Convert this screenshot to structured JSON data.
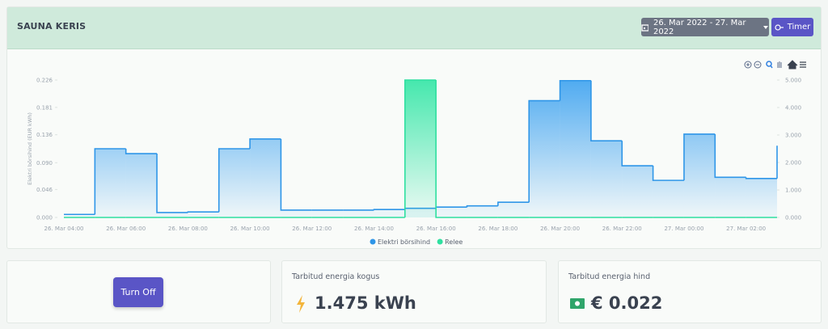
{
  "header": {
    "title": "SAUNA KERIS",
    "date_range": "26. Mar 2022 - 27. Mar 2022",
    "timer": "Timer"
  },
  "chart_data": {
    "type": "step-area",
    "ylabel": "Elektri börsihind (EUR kWh)",
    "categories": [
      "26. Mar 04:00",
      null,
      "26. Mar 06:00",
      null,
      "26. Mar 08:00",
      null,
      "26. Mar 10:00",
      null,
      "26. Mar 12:00",
      null,
      "26. Mar 14:00",
      null,
      "26. Mar 16:00",
      null,
      "26. Mar 18:00",
      null,
      "26. Mar 20:00",
      null,
      "26. Mar 22:00",
      null,
      "27. Mar 00:00",
      null,
      "27. Mar 02:00",
      null
    ],
    "series": [
      {
        "name": "Elektri börsihind",
        "color": "#2f96e8",
        "values": [
          0.005,
          0.113,
          0.105,
          0.008,
          0.009,
          0.113,
          0.129,
          0.012,
          0.012,
          0.012,
          0.013,
          0.015,
          0.017,
          0.019,
          0.025,
          0.192,
          0.225,
          0.126,
          0.085,
          0.061,
          0.137,
          0.066,
          0.064,
          0.118
        ]
      },
      {
        "name": "Relee",
        "color": "#2fe0a0",
        "axis": "y2",
        "values": [
          0,
          0,
          0,
          0,
          0,
          0,
          0,
          0,
          0,
          0,
          0,
          5,
          0,
          0,
          0,
          0,
          0,
          0,
          0,
          0,
          0,
          0,
          0,
          0
        ]
      }
    ],
    "ylim": [
      0,
      0.226
    ],
    "yticks": [
      {
        "value": 0,
        "label": "0.000"
      },
      {
        "value": 0.046,
        "label": "0.046"
      },
      {
        "value": 0.09,
        "label": "0.090"
      },
      {
        "value": 0.136,
        "label": "0.136"
      },
      {
        "value": 0.181,
        "label": "0.181"
      },
      {
        "value": 0.226,
        "label": "0.226"
      }
    ],
    "y2lim": [
      0,
      5
    ],
    "y2ticks": [
      {
        "value": 0,
        "label": "0.000"
      },
      {
        "value": 1,
        "label": "1.000"
      },
      {
        "value": 2,
        "label": "2.000"
      },
      {
        "value": 3,
        "label": "3.000"
      },
      {
        "value": 4,
        "label": "4.000"
      },
      {
        "value": 5,
        "label": "5.000"
      }
    ],
    "legend": "bottom"
  },
  "controls": {
    "button": "Turn Off"
  },
  "stats": [
    {
      "label": "Tarbitud energia kogus",
      "value": "1.475 kWh"
    },
    {
      "label": "Tarbitud energia hind",
      "value": "€ 0.022"
    }
  ]
}
